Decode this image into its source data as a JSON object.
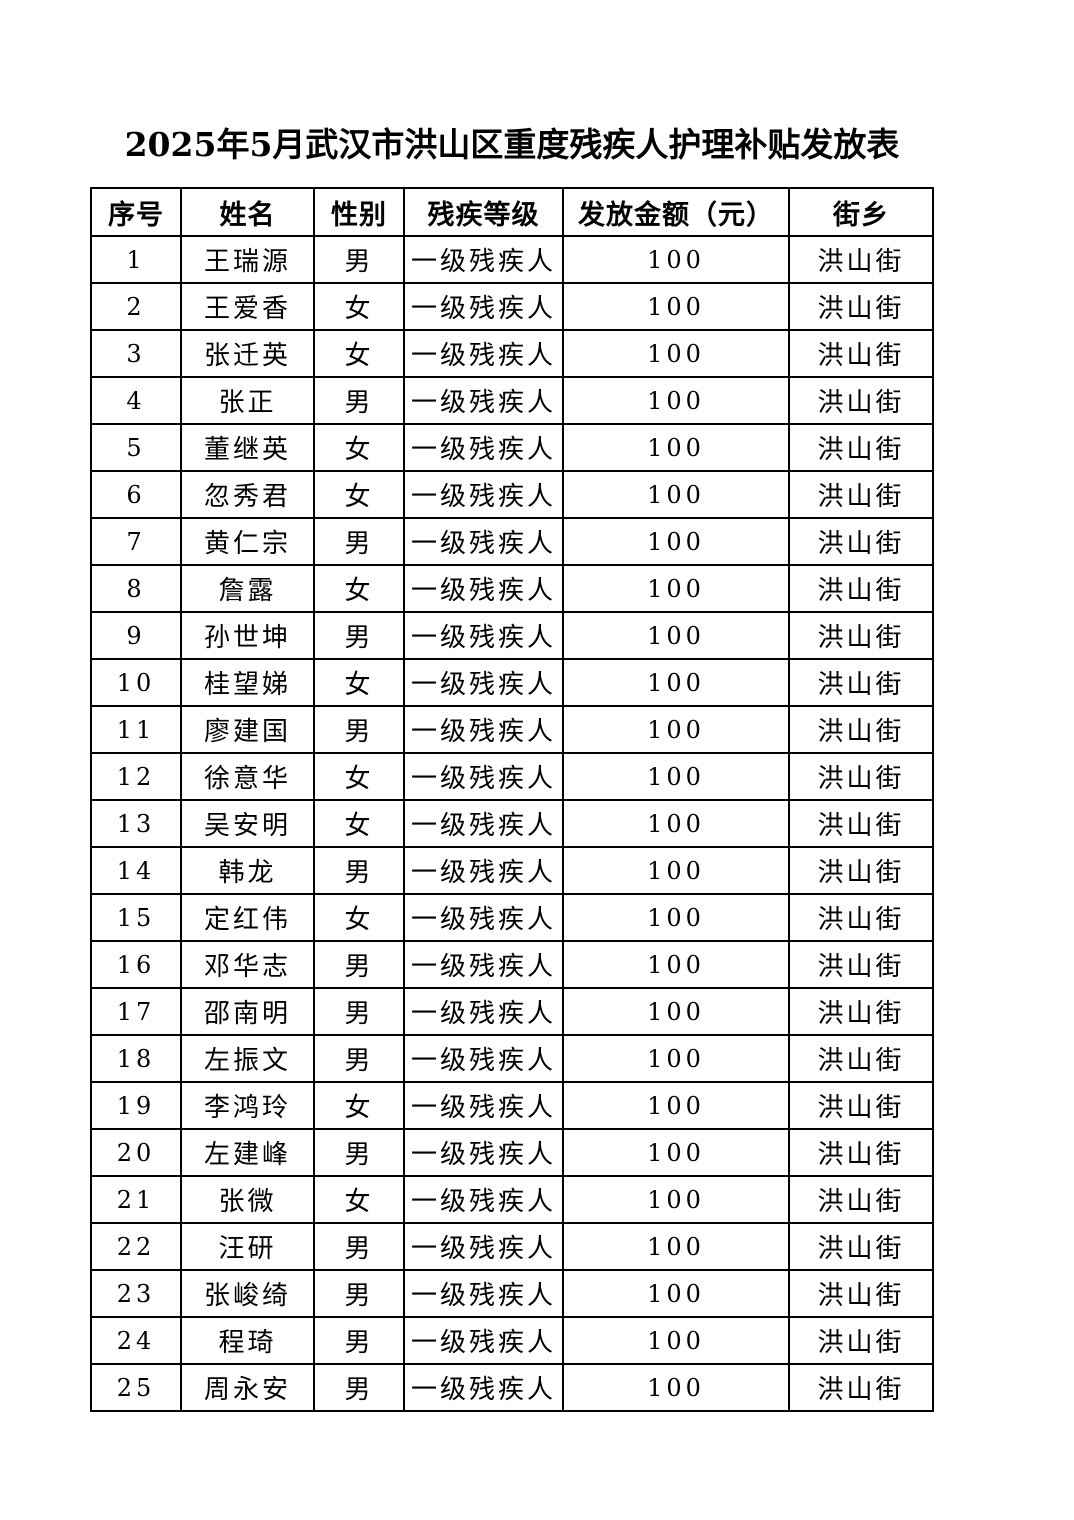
{
  "title": "2025年5月武汉市洪山区重度残疾人护理补贴发放表",
  "columns": [
    "序号",
    "姓名",
    "性别",
    "残疾等级",
    "发放金额（元）",
    "街乡"
  ],
  "rows": [
    [
      "1",
      "王瑞源",
      "男",
      "一级残疾人",
      "100",
      "洪山街"
    ],
    [
      "2",
      "王爱香",
      "女",
      "一级残疾人",
      "100",
      "洪山街"
    ],
    [
      "3",
      "张迁英",
      "女",
      "一级残疾人",
      "100",
      "洪山街"
    ],
    [
      "4",
      "张正",
      "男",
      "一级残疾人",
      "100",
      "洪山街"
    ],
    [
      "5",
      "董继英",
      "女",
      "一级残疾人",
      "100",
      "洪山街"
    ],
    [
      "6",
      "忽秀君",
      "女",
      "一级残疾人",
      "100",
      "洪山街"
    ],
    [
      "7",
      "黄仁宗",
      "男",
      "一级残疾人",
      "100",
      "洪山街"
    ],
    [
      "8",
      "詹露",
      "女",
      "一级残疾人",
      "100",
      "洪山街"
    ],
    [
      "9",
      "孙世坤",
      "男",
      "一级残疾人",
      "100",
      "洪山街"
    ],
    [
      "10",
      "桂望娣",
      "女",
      "一级残疾人",
      "100",
      "洪山街"
    ],
    [
      "11",
      "廖建国",
      "男",
      "一级残疾人",
      "100",
      "洪山街"
    ],
    [
      "12",
      "徐意华",
      "女",
      "一级残疾人",
      "100",
      "洪山街"
    ],
    [
      "13",
      "吴安明",
      "女",
      "一级残疾人",
      "100",
      "洪山街"
    ],
    [
      "14",
      "韩龙",
      "男",
      "一级残疾人",
      "100",
      "洪山街"
    ],
    [
      "15",
      "定红伟",
      "女",
      "一级残疾人",
      "100",
      "洪山街"
    ],
    [
      "16",
      "邓华志",
      "男",
      "一级残疾人",
      "100",
      "洪山街"
    ],
    [
      "17",
      "邵南明",
      "男",
      "一级残疾人",
      "100",
      "洪山街"
    ],
    [
      "18",
      "左振文",
      "男",
      "一级残疾人",
      "100",
      "洪山街"
    ],
    [
      "19",
      "李鸿玲",
      "女",
      "一级残疾人",
      "100",
      "洪山街"
    ],
    [
      "20",
      "左建峰",
      "男",
      "一级残疾人",
      "100",
      "洪山街"
    ],
    [
      "21",
      "张微",
      "女",
      "一级残疾人",
      "100",
      "洪山街"
    ],
    [
      "22",
      "汪研",
      "男",
      "一级残疾人",
      "100",
      "洪山街"
    ],
    [
      "23",
      "张峻绮",
      "男",
      "一级残疾人",
      "100",
      "洪山街"
    ],
    [
      "24",
      "程琦",
      "男",
      "一级残疾人",
      "100",
      "洪山街"
    ],
    [
      "25",
      "周永安",
      "男",
      "一级残疾人",
      "100",
      "洪山街"
    ]
  ]
}
